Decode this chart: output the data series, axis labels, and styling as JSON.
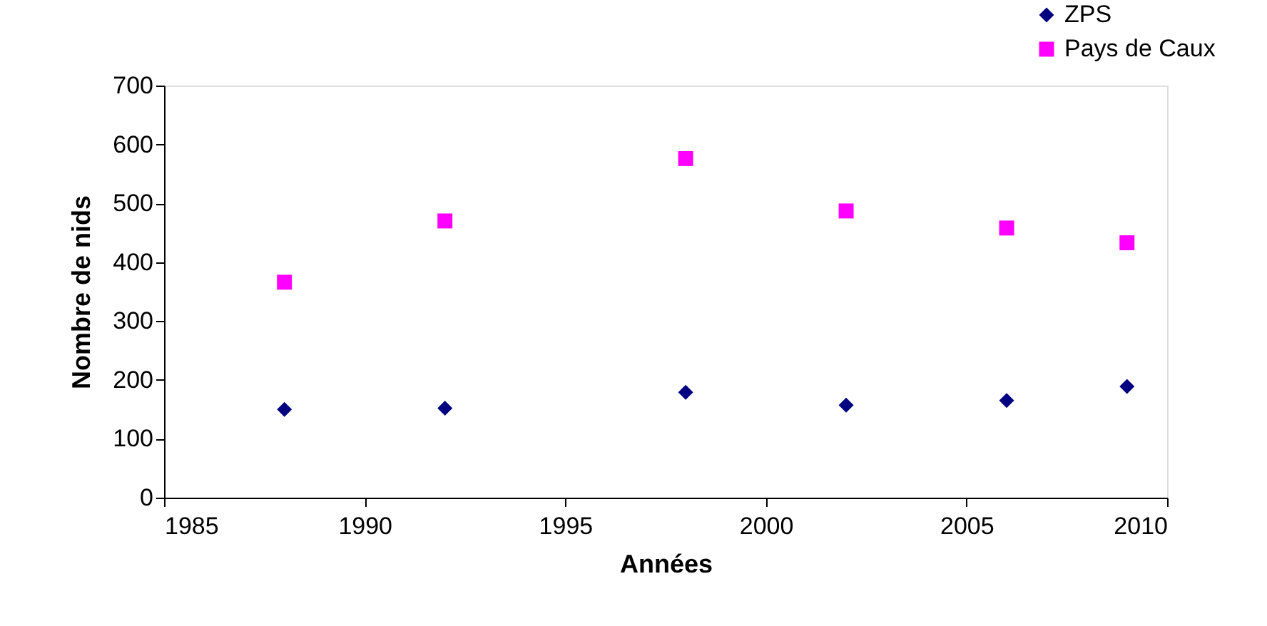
{
  "chart_data": {
    "type": "scatter",
    "xlabel": "Années",
    "ylabel": "Nombre de nids",
    "x": [
      1988,
      1992,
      1998,
      2002,
      2006,
      2009
    ],
    "series": [
      {
        "name": "ZPS",
        "color": "#000080",
        "marker": "diamond",
        "values": [
          150,
          152,
          179,
          157,
          165,
          189
        ]
      },
      {
        "name": "Pays de Caux",
        "color": "#ff00ff",
        "marker": "square",
        "values": [
          366,
          470,
          576,
          487,
          458,
          433
        ]
      }
    ],
    "xlim": [
      1985,
      2010
    ],
    "xticks": [
      1985,
      1990,
      1995,
      2000,
      2005,
      2010
    ],
    "ylim": [
      0,
      700
    ],
    "yticks": [
      0,
      100,
      200,
      300,
      400,
      500,
      600,
      700
    ],
    "grid": false,
    "legend": "top right"
  }
}
